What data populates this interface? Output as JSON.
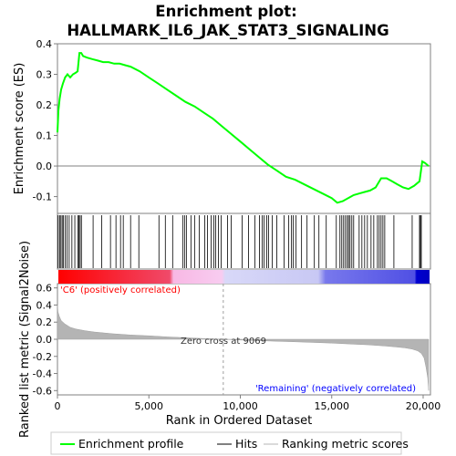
{
  "chart_data": {
    "type": "line",
    "title_line1": "Enrichment plot:",
    "title_line2": "HALLMARK_IL6_JAK_STAT3_SIGNALING",
    "xlabel": "Rank in Ordered Dataset",
    "ylabel_top": "Enrichment score (ES)",
    "ylabel_bottom": "Ranked list metric (Signal2Noise)",
    "xlim": [
      0,
      20400
    ],
    "x_ticks": [
      0,
      5000,
      10000,
      15000,
      20000
    ],
    "x_tick_labels": [
      "0",
      "5,000",
      "10,000",
      "15,000",
      "20,000"
    ],
    "es_ylim": [
      -0.155,
      0.4
    ],
    "es_y_ticks": [
      -0.1,
      0.0,
      0.1,
      0.2,
      0.3,
      0.4
    ],
    "es_y_tick_labels": [
      "-0.1",
      "0.0",
      "0.1",
      "0.2",
      "0.3",
      "0.4"
    ],
    "metric_ylim": [
      -0.65,
      0.65
    ],
    "metric_y_ticks": [
      -0.6,
      -0.4,
      -0.2,
      0.0,
      0.2,
      0.4,
      0.6
    ],
    "metric_y_tick_labels": [
      "-0.6",
      "-0.4",
      "-0.2",
      "0.0",
      "0.2",
      "0.4",
      "0.6"
    ],
    "enrichment_profile": {
      "x": [
        0,
        50,
        120,
        200,
        300,
        420,
        550,
        700,
        850,
        1000,
        1100,
        1200,
        1300,
        1400,
        1600,
        1900,
        2200,
        2500,
        2800,
        3100,
        3400,
        3700,
        4000,
        4500,
        5000,
        5500,
        6000,
        6500,
        7000,
        7500,
        8000,
        8500,
        9000,
        9500,
        10000,
        10500,
        11000,
        11500,
        12000,
        12500,
        13000,
        13500,
        14000,
        14500,
        15000,
        15300,
        15600,
        15900,
        16200,
        16500,
        16800,
        17100,
        17400,
        17700,
        18000,
        18300,
        18600,
        18900,
        19200,
        19500,
        19800,
        19950,
        20100,
        20300
      ],
      "y": [
        0.11,
        0.18,
        0.22,
        0.25,
        0.27,
        0.29,
        0.3,
        0.29,
        0.3,
        0.305,
        0.31,
        0.37,
        0.37,
        0.36,
        0.355,
        0.35,
        0.345,
        0.34,
        0.34,
        0.335,
        0.335,
        0.33,
        0.325,
        0.31,
        0.29,
        0.27,
        0.25,
        0.23,
        0.21,
        0.195,
        0.175,
        0.155,
        0.13,
        0.105,
        0.08,
        0.055,
        0.03,
        0.005,
        -0.015,
        -0.035,
        -0.045,
        -0.06,
        -0.075,
        -0.09,
        -0.105,
        -0.12,
        -0.115,
        -0.105,
        -0.095,
        -0.09,
        -0.085,
        -0.08,
        -0.07,
        -0.04,
        -0.04,
        -0.05,
        -0.06,
        -0.07,
        -0.075,
        -0.065,
        -0.05,
        0.015,
        0.01,
        0.0
      ]
    },
    "hit_ranks": [
      40,
      120,
      190,
      260,
      330,
      420,
      520,
      640,
      790,
      950,
      1120,
      1180,
      1240,
      1310,
      1950,
      2420,
      2900,
      3200,
      3450,
      3600,
      4000,
      4450,
      5550,
      5900,
      6300,
      6850,
      6950,
      7050,
      7300,
      7500,
      7750,
      8050,
      8200,
      8400,
      8550,
      8650,
      8800,
      8950,
      9300,
      9500,
      10100,
      10450,
      10800,
      11050,
      11200,
      11300,
      11450,
      11550,
      11750,
      12000,
      12400,
      12650,
      12800,
      12900,
      13050,
      13350,
      13650,
      14050,
      14300,
      14700,
      15250,
      15450,
      15550,
      15650,
      15750,
      15850,
      15920,
      16000,
      16100,
      16200,
      16500,
      16650,
      16800,
      16950,
      17150,
      17300,
      17500,
      17600,
      17700,
      17800,
      17900,
      18400,
      19400,
      19800,
      19850,
      19900
    ],
    "metric_curve": {
      "x": [
        0,
        30,
        100,
        200,
        400,
        700,
        1000,
        1500,
        2000,
        3000,
        4000,
        5000,
        6000,
        7000,
        8000,
        9069,
        10000,
        11000,
        12000,
        13000,
        14000,
        15000,
        16000,
        17000,
        17500,
        18000,
        18500,
        19000,
        19400,
        19700,
        19900,
        20050,
        20150,
        20250,
        20300
      ],
      "y": [
        0.4,
        0.32,
        0.27,
        0.22,
        0.18,
        0.14,
        0.12,
        0.1,
        0.085,
        0.065,
        0.05,
        0.04,
        0.028,
        0.018,
        0.008,
        0.0,
        -0.008,
        -0.016,
        -0.023,
        -0.03,
        -0.037,
        -0.045,
        -0.055,
        -0.065,
        -0.072,
        -0.08,
        -0.09,
        -0.1,
        -0.115,
        -0.135,
        -0.165,
        -0.22,
        -0.32,
        -0.45,
        -0.6
      ]
    },
    "zero_cross": 9069,
    "zero_cross_label": "Zero cross at 9069",
    "positive_label": "'C6' (positively correlated)",
    "negative_label": "'Remaining' (negatively correlated)",
    "legend": [
      "Enrichment profile",
      "Hits",
      "Ranking metric scores"
    ],
    "colors": {
      "profile": "#00ff00",
      "hits": "#000000",
      "positive_label": "#ff0000",
      "negative_label": "#0000ff",
      "metric_fill": "#b4b4b4",
      "zero_line": "#808080"
    }
  }
}
